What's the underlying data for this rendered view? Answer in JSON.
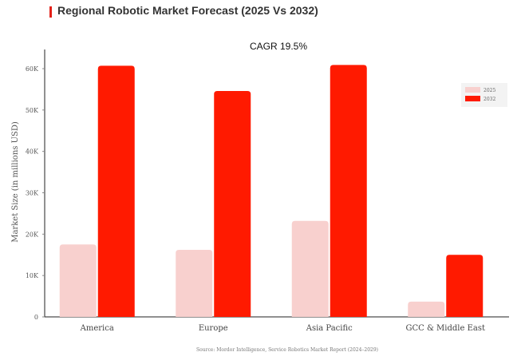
{
  "header": {
    "title": "Regional Robotic Market Forecast (2025 Vs 2032)",
    "accent_color": "#e32119"
  },
  "source": "Source: Mordor Intelligence, Service Robotics Market Report (2024–2029)",
  "chart_data": {
    "type": "bar",
    "title": "CAGR 19.5%",
    "xlabel": "",
    "ylabel": "Market Size (in millions USD)",
    "categories": [
      "America",
      "Europe",
      "Asia Pacific",
      "GCC & Middle East"
    ],
    "series": [
      {
        "name": "2025",
        "color": "#f8d0ce",
        "values": [
          17500,
          16200,
          23200,
          3700
        ]
      },
      {
        "name": "2032",
        "color": "#ff1a00",
        "values": [
          60700,
          54600,
          60900,
          15000
        ]
      }
    ],
    "ylim": [
      0,
      65000
    ],
    "yticks": [
      0,
      10000,
      20000,
      30000,
      40000,
      50000,
      60000
    ],
    "ytick_labels": [
      "0",
      "10K",
      "20K",
      "30K",
      "40K",
      "50K",
      "60K"
    ],
    "grid": false,
    "legend_position": "top-right"
  }
}
